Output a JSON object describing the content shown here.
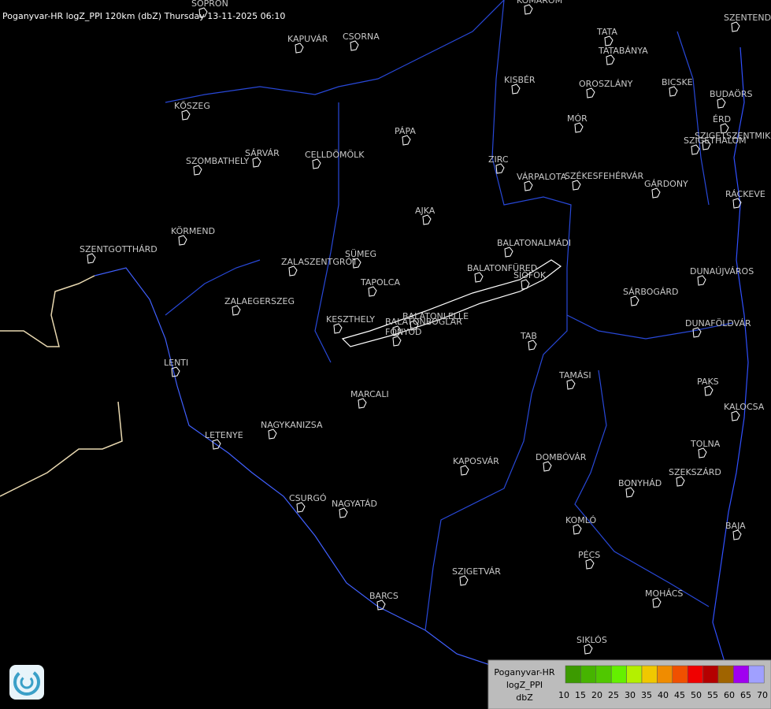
{
  "header": {
    "title": "Poganyvar-HR logZ_PPI 120km (dbZ) Thursday 13-11-2025 06:10"
  },
  "places": [
    {
      "name": "SOPRON"
    },
    {
      "name": "KOMÁROM"
    },
    {
      "name": "SZENTEND"
    },
    {
      "name": "KAPUVÁR"
    },
    {
      "name": "CSORNA"
    },
    {
      "name": "TATA"
    },
    {
      "name": "TATABÁNYA"
    },
    {
      "name": "KISBÉR"
    },
    {
      "name": "OROSZLÁNY"
    },
    {
      "name": "BICSKE"
    },
    {
      "name": "BUDAÖRS"
    },
    {
      "name": "KŐSZEG"
    },
    {
      "name": "MÓR"
    },
    {
      "name": "ÉRD"
    },
    {
      "name": "SZIGETSZENTMIKLÓS"
    },
    {
      "name": "SZIGETHALOM"
    },
    {
      "name": "PÁPA"
    },
    {
      "name": "SZOMBATHELY"
    },
    {
      "name": "SÁRVÁR"
    },
    {
      "name": "CELLDÖMÖLK"
    },
    {
      "name": "ZIRC"
    },
    {
      "name": "VÁRPALOTA"
    },
    {
      "name": "SZÉKESFEHÉRVÁR"
    },
    {
      "name": "GÁRDONY"
    },
    {
      "name": "RÁCKEVE"
    },
    {
      "name": "AJKA"
    },
    {
      "name": "KÖRMEND"
    },
    {
      "name": "BALATONALMÁDI"
    },
    {
      "name": "SZENTGOTTHÁRD"
    },
    {
      "name": "SÜMEG"
    },
    {
      "name": "ZALASZENTGRÓT"
    },
    {
      "name": "BALATONFÜRED"
    },
    {
      "name": "SIÓFOK"
    },
    {
      "name": "DUNAÚJVÁROS"
    },
    {
      "name": "TAPOLCA"
    },
    {
      "name": "SÁRBOGÁRD"
    },
    {
      "name": "ZALAEGERSZEG"
    },
    {
      "name": "BALATONLELLE"
    },
    {
      "name": "KESZTHELY"
    },
    {
      "name": "BALATONBOGLÁR"
    },
    {
      "name": "FONYÓD"
    },
    {
      "name": "DUNAFÖLDVÁR"
    },
    {
      "name": "TAB"
    },
    {
      "name": "LENTI"
    },
    {
      "name": "TAMÁSI"
    },
    {
      "name": "PAKS"
    },
    {
      "name": "MARCALI"
    },
    {
      "name": "KALOCSA"
    },
    {
      "name": "NAGYKANIZSA"
    },
    {
      "name": "LETENYE"
    },
    {
      "name": "TOLNA"
    },
    {
      "name": "KAPOSVÁR"
    },
    {
      "name": "DOMBÓVÁR"
    },
    {
      "name": "SZEKSZÁRD"
    },
    {
      "name": "BONYHÁD"
    },
    {
      "name": "CSURGÓ"
    },
    {
      "name": "NAGYATÁD"
    },
    {
      "name": "KOMLÓ"
    },
    {
      "name": "BAJA"
    },
    {
      "name": "PÉCS"
    },
    {
      "name": "SZIGETVÁR"
    },
    {
      "name": "MOHÁCS"
    },
    {
      "name": "BARCS"
    },
    {
      "name": "SIKLÓS"
    }
  ],
  "legend": {
    "title": [
      "Poganyvar-HR",
      "logZ_PPI",
      "dbZ"
    ],
    "levels": [
      "10",
      "15",
      "20",
      "25",
      "30",
      "35",
      "40",
      "45",
      "50",
      "55",
      "60",
      "65",
      "70"
    ],
    "colors": [
      "#3c9a00",
      "#46b400",
      "#50c800",
      "#64f000",
      "#b4f000",
      "#f0c800",
      "#f08c00",
      "#f05000",
      "#f00000",
      "#b40000",
      "#a06400",
      "#a000f0",
      "#a0a0ff"
    ]
  }
}
